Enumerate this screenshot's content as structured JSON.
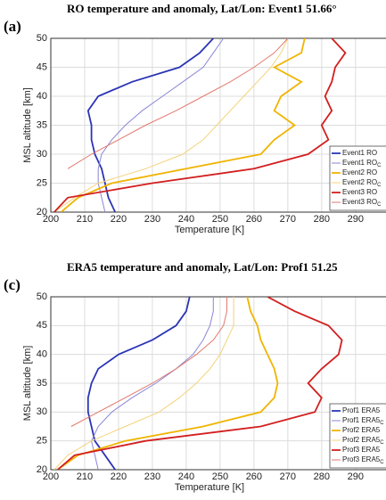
{
  "chart_data": [
    {
      "type": "line",
      "panel_label": "(a)",
      "title": "RO temperature and anomaly, Lat/Lon: Event1 51.66°",
      "x_label": "Temperature [K]",
      "y_label": "MSL altitude [km]",
      "xlim": [
        200,
        299
      ],
      "xticks": [
        200,
        210,
        220,
        230,
        240,
        250,
        260,
        270,
        280,
        290
      ],
      "ylim": [
        20,
        50
      ],
      "yticks": [
        20,
        25,
        30,
        35,
        40,
        45,
        50
      ],
      "grid": true,
      "legend": "lower right",
      "y": [
        20,
        22.5,
        25,
        27.5,
        30,
        32.5,
        35,
        37.5,
        40,
        42.5,
        45,
        47.5,
        50
      ],
      "series": [
        {
          "name": "Event1 RO",
          "color": "#2b35b5",
          "x": [
            219,
            217,
            216,
            215,
            213,
            212,
            212,
            211,
            214,
            224,
            238,
            244,
            248
          ]
        },
        {
          "name": "Event1 RO",
          "subscript": "C",
          "color": "#8a86d6",
          "x": [
            216,
            215,
            214,
            214,
            215,
            218,
            222,
            227,
            233,
            239,
            245,
            248,
            251
          ]
        },
        {
          "name": "Event2 RO",
          "color": "#f0b400",
          "x": [
            203,
            208,
            218,
            240,
            262,
            266,
            272,
            266,
            268,
            274,
            266,
            274,
            275
          ]
        },
        {
          "name": "Event2 RO",
          "subscript": "C",
          "color": "#f4d37a",
          "x": [
            201,
            207,
            214,
            228,
            239,
            245,
            249,
            253,
            257,
            261,
            265,
            268,
            270
          ]
        },
        {
          "name": "Event3 RO",
          "color": "#d21f1f",
          "x": [
            201,
            205,
            230,
            260,
            276,
            282,
            280,
            283,
            281,
            283,
            284,
            287,
            283
          ]
        },
        {
          "name": "Event3 RO",
          "subscript": "C",
          "color": "#e27a6e",
          "x": [
            null,
            null,
            null,
            205,
            212,
            220,
            228,
            237,
            245,
            253,
            260,
            266,
            270
          ]
        }
      ]
    },
    {
      "type": "line",
      "panel_label": "(c)",
      "title": "ERA5 temperature and anomaly, Lat/Lon: Prof1 51.25",
      "x_label": "Temperature [K]",
      "y_label": "MSL altitude [km]",
      "xlim": [
        200,
        299
      ],
      "xticks": [
        200,
        210,
        220,
        230,
        240,
        250,
        260,
        270,
        280,
        290
      ],
      "ylim": [
        20,
        50
      ],
      "yticks": [
        20,
        25,
        30,
        35,
        40,
        45,
        50
      ],
      "grid": true,
      "legend": "lower right",
      "y": [
        20,
        22.5,
        25,
        27.5,
        30,
        32.5,
        35,
        37.5,
        40,
        42.5,
        45,
        47.5,
        50
      ],
      "series": [
        {
          "name": "Prof1 ERA5",
          "color": "#2b35b5",
          "x": [
            219,
            216,
            213,
            212,
            211,
            211,
            212,
            214,
            220,
            230,
            237,
            240,
            241
          ]
        },
        {
          "name": "Prof1 ERA5",
          "subscript": "C",
          "color": "#8a86d6",
          "x": [
            214,
            213,
            212,
            214,
            218,
            224,
            231,
            237,
            242,
            245,
            247,
            248,
            248
          ]
        },
        {
          "name": "Prof2 ERA5",
          "color": "#f0b400",
          "x": [
            202,
            208,
            222,
            245,
            262,
            266,
            267,
            266,
            264,
            262,
            261,
            259,
            258
          ]
        },
        {
          "name": "Prof2 ERA5",
          "subscript": "C",
          "color": "#f4d37a",
          "x": [
            201,
            205,
            212,
            222,
            232,
            238,
            243,
            247,
            250,
            252,
            254,
            254,
            254
          ]
        },
        {
          "name": "Prof3 ERA5",
          "color": "#d21f1f",
          "x": [
            202,
            207,
            228,
            262,
            278,
            280,
            276,
            280,
            285,
            286,
            282,
            272,
            264
          ]
        },
        {
          "name": "Prof3 ERA5",
          "subscript": "C",
          "color": "#e27a6e",
          "x": [
            null,
            null,
            null,
            206,
            214,
            222,
            230,
            237,
            243,
            248,
            251,
            252,
            252
          ]
        }
      ]
    }
  ]
}
